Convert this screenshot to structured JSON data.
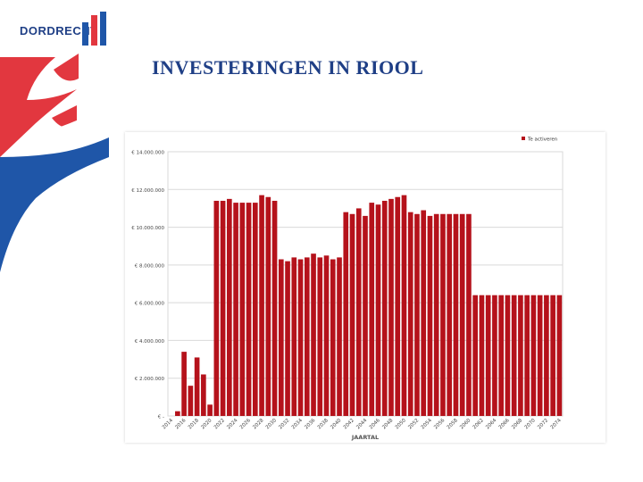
{
  "logo": {
    "text": "DORDRECHT"
  },
  "slide": {
    "title": "INVESTERINGEN IN RIOOL"
  },
  "colors": {
    "brand_blue": "#1f56a8",
    "brand_red": "#e2373f",
    "bar_red": "#b5121b",
    "title_blue": "#1f3f86"
  },
  "chart_data": {
    "type": "bar",
    "title": "",
    "xlabel": "JAARTAL",
    "ylabel": "",
    "legend": {
      "entries": [
        "Te activeren"
      ],
      "placement": "top-right"
    },
    "ylim": [
      0,
      14000000
    ],
    "yticks": [
      0,
      2000000,
      4000000,
      6000000,
      8000000,
      10000000,
      12000000,
      14000000
    ],
    "ytick_labels": [
      "€ -",
      "€ 2.000.000",
      "€ 4.000.000",
      "€ 6.000.000",
      "€ 8.000.000",
      "€ 10.000.000",
      "€ 12.000.000",
      "€ 14.000.000"
    ],
    "grid": true,
    "categories": [
      "2014",
      "2015",
      "2016",
      "2017",
      "2018",
      "2019",
      "2020",
      "2021",
      "2022",
      "2023",
      "2024",
      "2025",
      "2026",
      "2027",
      "2028",
      "2029",
      "2030",
      "2031",
      "2032",
      "2033",
      "2034",
      "2035",
      "2036",
      "2037",
      "2038",
      "2039",
      "2040",
      "2041",
      "2042",
      "2043",
      "2044",
      "2045",
      "2046",
      "2047",
      "2048",
      "2049",
      "2050",
      "2051",
      "2052",
      "2053",
      "2054",
      "2055",
      "2056",
      "2057",
      "2058",
      "2059",
      "2060",
      "2061",
      "2062",
      "2063",
      "2064",
      "2065",
      "2066",
      "2067",
      "2068",
      "2069",
      "2070",
      "2071",
      "2072",
      "2073",
      "2074"
    ],
    "xtick_labels": [
      "2014",
      "",
      "2016",
      "",
      "2018",
      "",
      "2020",
      "",
      "2022",
      "",
      "2024",
      "",
      "2026",
      "",
      "2028",
      "",
      "2030",
      "",
      "2032",
      "",
      "2034",
      "",
      "2036",
      "",
      "2038",
      "",
      "2040",
      "",
      "2042",
      "",
      "2044",
      "",
      "2046",
      "",
      "2048",
      "",
      "2050",
      "",
      "2052",
      "",
      "2054",
      "",
      "2056",
      "",
      "2058",
      "",
      "2060",
      "",
      "2062",
      "",
      "2064",
      "",
      "2066",
      "",
      "2068",
      "",
      "2070",
      "",
      "2072",
      "",
      "2074"
    ],
    "series": [
      {
        "name": "Te activeren",
        "values": [
          0,
          250000,
          3400000,
          1600000,
          3100000,
          2200000,
          600000,
          11400000,
          11400000,
          11500000,
          11300000,
          11300000,
          11300000,
          11300000,
          11700000,
          11600000,
          11400000,
          8300000,
          8200000,
          8400000,
          8300000,
          8400000,
          8600000,
          8400000,
          8500000,
          8300000,
          8400000,
          10800000,
          10700000,
          11000000,
          10600000,
          11300000,
          11200000,
          11400000,
          11500000,
          11600000,
          11700000,
          10800000,
          10700000,
          10900000,
          10600000,
          10700000,
          10700000,
          10700000,
          10700000,
          10700000,
          10700000,
          6400000,
          6400000,
          6400000,
          6400000,
          6400000,
          6400000,
          6400000,
          6400000,
          6400000,
          6400000,
          6400000,
          6400000,
          6400000,
          6400000
        ]
      }
    ]
  }
}
